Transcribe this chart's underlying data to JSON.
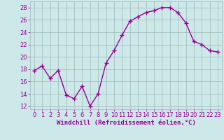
{
  "x": [
    0,
    1,
    2,
    3,
    4,
    5,
    6,
    7,
    8,
    9,
    10,
    11,
    12,
    13,
    14,
    15,
    16,
    17,
    18,
    19,
    20,
    21,
    22,
    23
  ],
  "y": [
    17.8,
    18.5,
    16.5,
    17.8,
    13.8,
    13.2,
    15.2,
    12.0,
    14.0,
    19.0,
    21.0,
    23.5,
    25.8,
    26.5,
    27.2,
    27.5,
    28.0,
    28.0,
    27.2,
    25.5,
    22.5,
    22.0,
    21.0,
    20.8
  ],
  "line_color": "#990099",
  "marker": "+",
  "markersize": 4,
  "linewidth": 1.0,
  "bg_color": "#cce8e8",
  "plot_bg_color": "#cce8e8",
  "grid_color": "#a0b8b8",
  "ylim": [
    11.5,
    29.0
  ],
  "yticks": [
    12,
    14,
    16,
    18,
    20,
    22,
    24,
    26,
    28
  ],
  "xticks": [
    0,
    1,
    2,
    3,
    4,
    5,
    6,
    7,
    8,
    9,
    10,
    11,
    12,
    13,
    14,
    15,
    16,
    17,
    18,
    19,
    20,
    21,
    22,
    23
  ],
  "xlabel": "Windchill (Refroidissement éolien,°C)",
  "xlabel_color": "#990099",
  "xlabel_fontsize": 6.5,
  "tick_fontsize": 6.0,
  "tick_color": "#990099",
  "markeredgewidth": 1.0
}
